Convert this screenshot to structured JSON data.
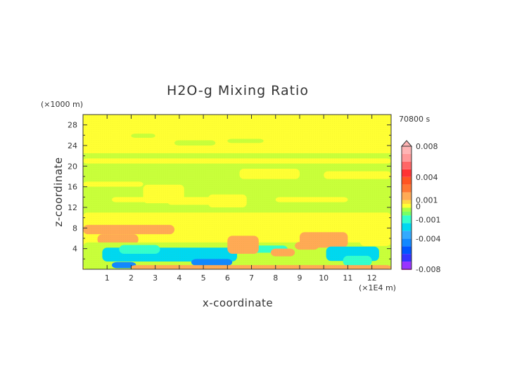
{
  "chart_data": {
    "type": "heatmap",
    "title": "H2O-g Mixing Ratio",
    "xlabel": "x-coordinate",
    "ylabel": "z-coordinate",
    "x_unit": "(×1E4 m)",
    "y_unit": "(×1000 m)",
    "time_label": "70800 s",
    "x_ticks": [
      "1",
      "2",
      "3",
      "4",
      "5",
      "6",
      "7",
      "8",
      "9",
      "10",
      "11",
      "12"
    ],
    "y_ticks": [
      "4",
      "8",
      "12",
      "16",
      "20",
      "24",
      "28"
    ],
    "xlim": [
      0,
      12.8
    ],
    "ylim": [
      0,
      30
    ],
    "grid": false,
    "colorbar": {
      "labels": [
        "0.008",
        "0.004",
        "0.001",
        "0",
        "-0.001",
        "-0.004",
        "-0.008"
      ],
      "levels": [
        -0.008,
        -0.007,
        -0.006,
        -0.005,
        -0.004,
        -0.003,
        -0.002,
        -0.001,
        -0.0005,
        0,
        0.0005,
        0.001,
        0.002,
        0.003,
        0.004,
        0.005,
        0.006,
        0.007,
        0.008
      ],
      "colors": [
        "#ff33cc",
        "#9933ff",
        "#3333ff",
        "#0055ff",
        "#1188ff",
        "#33aaff",
        "#00d8f0",
        "#33ffcc",
        "#77ff66",
        "#aaff44",
        "#ffff33",
        "#ffd740",
        "#ffaa55",
        "#ff7733",
        "#ff5522",
        "#ff3333",
        "#ff6666",
        "#ff9999",
        "#ffb4b4"
      ],
      "bands_bottom_to_top": [
        {
          "z_range": [
            0,
            1
          ],
          "value": -0.0015,
          "note": "blue near surface x 1.5-2 and 4.5-6"
        },
        {
          "z_range": [
            1,
            5
          ],
          "value": -0.0008,
          "note": "cyan layer x 1-6.5 and 10-12"
        },
        {
          "z_range": [
            5,
            8.5
          ],
          "value": 0.0012,
          "note": "orange patches at x 0-3.5 (z 7-8.5) and x 9-11 (z 4-7)"
        },
        {
          "z_range": [
            8.5,
            23
          ],
          "value": 0.0003,
          "note": "green/yellow mixed"
        },
        {
          "z_range": [
            23,
            30
          ],
          "value": 0.0006,
          "note": "yellow"
        }
      ]
    }
  }
}
